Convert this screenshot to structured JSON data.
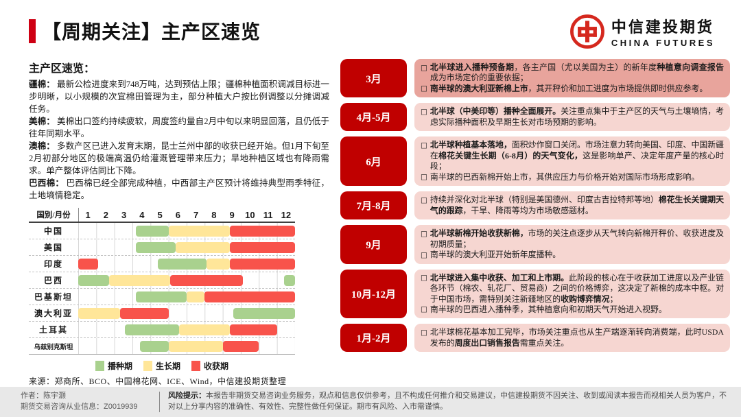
{
  "header": {
    "title": "【周期关注】主产区速览",
    "logo_cn": "中信建投期货",
    "logo_en": "CHINA FUTURES"
  },
  "colors": {
    "accent_red": "#CE0013",
    "label_red": "#C00000",
    "box_dark": "#E8A49C",
    "box_light": "#F6D6D1",
    "bar_green": "#A9D18E",
    "bar_yellow": "#FFE699",
    "bar_red": "#F8534B",
    "footer_bg": "#E8E8E8",
    "logo_red": "#D5281E"
  },
  "left": {
    "title": "主产区速览：",
    "paragraphs": [
      {
        "segments": [
          {
            "text": "疆棉：",
            "bold": true
          },
          {
            "text": " 最新公检进度来到748万吨，达到预估上限；疆棉种植面积调减目标进一步明晰，以小规模的次宜棉田管理为主，部分种植大户按比例调整以分摊调减任务。",
            "bold": false
          }
        ]
      },
      {
        "segments": [
          {
            "text": "美棉：",
            "bold": true
          },
          {
            "text": " 美棉出口签约持续疲软，周度签约量自2月中旬以来明显回落，且仍低于往年同期水平。",
            "bold": false
          }
        ]
      },
      {
        "segments": [
          {
            "text": "澳棉：",
            "bold": true
          },
          {
            "text": " 多数产区已进入发育末期，昆士兰州中部的收获已经开始。但1月下旬至2月初部分地区的极端高温仍给灌溉管理带来压力；旱地种植区域也有降雨需求。单产整体评估同比下降。",
            "bold": false
          }
        ]
      },
      {
        "segments": [
          {
            "text": "巴西棉：",
            "bold": true
          },
          {
            "text": " 巴西棉已经全部完成种植，中西部主产区预计将维持典型雨季特征，土地墒情稳定。",
            "bold": false
          }
        ]
      }
    ],
    "source": "来源：郑商所、BCO、中国棉花网、ICE、Wind，中信建投期货整理"
  },
  "chart_data": {
    "type": "gantt",
    "corner_label": "国别/月份",
    "months": [
      "1",
      "2",
      "3",
      "4",
      "5",
      "6",
      "7",
      "8",
      "9",
      "10",
      "11",
      "12"
    ],
    "axis_note": "月份刻度1-12，条段起止以月为单位",
    "phases": [
      {
        "name": "播种期",
        "color": "#A9D18E"
      },
      {
        "name": "生长期",
        "color": "#FFE699"
      },
      {
        "name": "收获期",
        "color": "#F8534B"
      }
    ],
    "rows": [
      {
        "country": "中国",
        "segments": [
          {
            "phase": "播种期",
            "start_month": 4.2,
            "end_month": 6.0
          },
          {
            "phase": "生长期",
            "start_month": 6.0,
            "end_month": 9.4
          },
          {
            "phase": "收获期",
            "start_month": 9.4,
            "end_month": 13.0
          }
        ]
      },
      {
        "country": "美国",
        "segments": [
          {
            "phase": "播种期",
            "start_month": 4.2,
            "end_month": 6.4
          },
          {
            "phase": "生长期",
            "start_month": 6.4,
            "end_month": 9.4
          },
          {
            "phase": "收获期",
            "start_month": 9.4,
            "end_month": 13.0
          }
        ]
      },
      {
        "country": "印度",
        "segments": [
          {
            "phase": "收获期",
            "start_month": 1.0,
            "end_month": 2.1
          },
          {
            "phase": "播种期",
            "start_month": 5.4,
            "end_month": 8.1
          },
          {
            "phase": "生长期",
            "start_month": 8.1,
            "end_month": 9.4
          },
          {
            "phase": "收获期",
            "start_month": 9.4,
            "end_month": 13.0
          }
        ]
      },
      {
        "country": "巴西",
        "segments": [
          {
            "phase": "播种期",
            "start_month": 1.0,
            "end_month": 2.7
          },
          {
            "phase": "生长期",
            "start_month": 2.7,
            "end_month": 6.1
          },
          {
            "phase": "收获期",
            "start_month": 6.1,
            "end_month": 10.1
          },
          {
            "phase": "播种期",
            "start_month": 12.4,
            "end_month": 13.0
          }
        ]
      },
      {
        "country": "巴基斯坦",
        "segments": [
          {
            "phase": "播种期",
            "start_month": 4.2,
            "end_month": 7.0
          },
          {
            "phase": "生长期",
            "start_month": 7.0,
            "end_month": 8.0
          },
          {
            "phase": "收获期",
            "start_month": 8.0,
            "end_month": 13.0
          }
        ]
      },
      {
        "country": "澳大利亚",
        "segments": [
          {
            "phase": "生长期",
            "start_month": 1.0,
            "end_month": 3.3
          },
          {
            "phase": "收获期",
            "start_month": 3.3,
            "end_month": 6.0
          },
          {
            "phase": "播种期",
            "start_month": 9.6,
            "end_month": 13.0
          }
        ]
      },
      {
        "country": "土耳其",
        "segments": [
          {
            "phase": "播种期",
            "start_month": 3.6,
            "end_month": 6.6
          },
          {
            "phase": "生长期",
            "start_month": 6.6,
            "end_month": 9.4
          },
          {
            "phase": "收获期",
            "start_month": 9.4,
            "end_month": 12.0
          }
        ]
      },
      {
        "country": "乌兹别克斯坦",
        "segments": [
          {
            "phase": "播种期",
            "start_month": 4.4,
            "end_month": 6.0
          },
          {
            "phase": "生长期",
            "start_month": 6.0,
            "end_month": 9.0
          },
          {
            "phase": "收获期",
            "start_month": 9.0,
            "end_month": 11.0
          }
        ]
      }
    ]
  },
  "timeline": {
    "rows": [
      {
        "label": "3月",
        "box_tone": "dark",
        "bullets": [
          [
            {
              "text": "北半球进入播种预备期",
              "bold": true
            },
            {
              "text": "，各主产国（尤以美国为主）的新年度",
              "bold": false
            },
            {
              "text": "种植意向调查报告",
              "bold": true
            },
            {
              "text": "成为市场定价的重要依据；",
              "bold": false
            }
          ],
          [
            {
              "text": "南半球的澳大利亚新棉上市",
              "bold": true
            },
            {
              "text": "，其开秤价和加工进度为市场提供即时供应参考。",
              "bold": false
            }
          ]
        ]
      },
      {
        "label": "4月-5月",
        "box_tone": "light",
        "bullets": [
          [
            {
              "text": "北半球（中美印等）播种全面展开。",
              "bold": true
            },
            {
              "text": "关注重点集中于主产区的天气与土壤墒情，考虑实际播种面积及早期生长对市场预期的影响。",
              "bold": false
            }
          ]
        ]
      },
      {
        "label": "6月",
        "box_tone": "light",
        "bullets": [
          [
            {
              "text": "北半球种植基本落地，",
              "bold": true
            },
            {
              "text": "面积炒作窗口关闭。市场注意力转向美国、印度、中国新疆在",
              "bold": false
            },
            {
              "text": "棉花关键生长期（6-8月）的天气变化，",
              "bold": true
            },
            {
              "text": "这是影响单产、决定年度产量的核心时段；",
              "bold": false
            }
          ],
          [
            {
              "text": "南半球的巴西新棉开始上市，其供应压力与价格开始对国际市场形成影响。",
              "bold": false
            }
          ]
        ]
      },
      {
        "label": "7月-8月",
        "box_tone": "light",
        "bullets": [
          [
            {
              "text": "持续并深化对北半球（特别是美国德州、印度古吉拉特邦等地）",
              "bold": false
            },
            {
              "text": "棉花生长关键期天气的跟踪",
              "bold": true
            },
            {
              "text": "，干旱、降雨等均为市场敏感题材。",
              "bold": false
            }
          ]
        ]
      },
      {
        "label": "9月",
        "box_tone": "light",
        "bullets": [
          [
            {
              "text": "北半球新棉开始收获新棉，",
              "bold": true
            },
            {
              "text": "市场的关注点逐步从天气转向新棉开秤价、收获进度及初期质量；",
              "bold": false
            }
          ],
          [
            {
              "text": "南半球的澳大利亚开始新年度播种。",
              "bold": false
            }
          ]
        ]
      },
      {
        "label": "10月-12月",
        "box_tone": "light",
        "bullets": [
          [
            {
              "text": "北半球进入集中收获、加工和上市期。",
              "bold": true
            },
            {
              "text": "此阶段的核心在于收获加工进度以及产业链各环节（棉农、轧花厂、贸易商）之间的价格博弈，这决定了新棉的成本中枢。对于中国市场，需特别关注新疆地区的",
              "bold": false
            },
            {
              "text": "收购博弈情况",
              "bold": true
            },
            {
              "text": "；",
              "bold": false
            }
          ],
          [
            {
              "text": "南半球的巴西进入播种季，其种植意向和初期天气开始进入视野。",
              "bold": false
            }
          ]
        ]
      },
      {
        "label": "1月-2月",
        "box_tone": "light",
        "bullets": [
          [
            {
              "text": "北半球棉花基本加工完毕，市场关注重点也从生产端逐渐转向消费端，此时USDA发布的",
              "bold": false
            },
            {
              "text": "周度出口销售报告",
              "bold": true
            },
            {
              "text": "需重点关注。",
              "bold": false
            }
          ]
        ]
      }
    ]
  },
  "footer": {
    "author_line1": "作者：陈宇灏",
    "author_line2": "期货交易咨询从业信息：Z0019939",
    "risk_label": "风险提示：",
    "risk_text": "本报告非期货交易咨询业务服务，观点和信息仅供参考，且不构成任何推介和交易建议，中信建投期货不因关注、收到或阅读本报告而视相关人员为客户，不对以上分享内容的准确性、有效性、完整性做任何保证。期市有风险、入市需谨慎。"
  }
}
